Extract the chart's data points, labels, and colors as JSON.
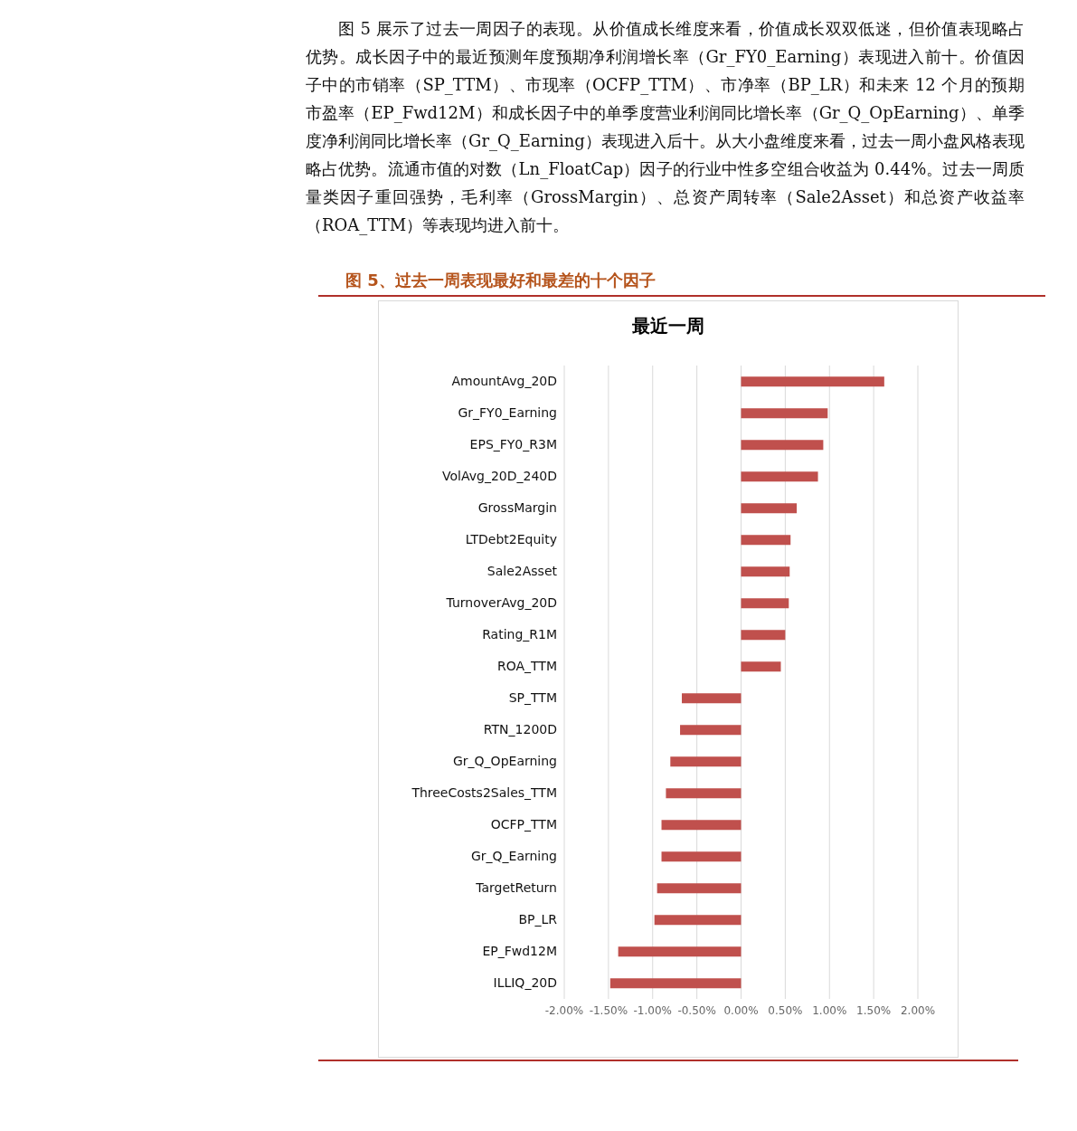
{
  "chart_data": {
    "type": "bar",
    "orientation": "horizontal",
    "title": "图 5、过去一周表现最好和最差的十个因子",
    "subtitle": "最近一周",
    "annotations": [
      "图 5 展示了过去一周因子的表现。从价值成长维度来看，价值成长双双低迷，但价值表现略占优势。成长因子中的最近预测年度预期净利润增长率（Gr_FY0_Earning）表现进入前十。价值因子中的市销率（SP_TTM）、市现率（OCFP_TTM）、市净率（BP_LR）和未来 12 个月的预期市盈率（EP_Fwd12M）和成长因子中的单季度营业利润同比增长率（Gr_Q_OpEarning）、单季度净利润同比增长率（Gr_Q_Earning）表现进入后十。从大小盘维度来看，过去一周小盘风格表现略占优势。流通市值的对数（Ln_FloatCap）因子的行业中性多空组合收益为 0.44%。过去一周质量类因子重回强势，毛利率（GrossMargin）、总资产周转率（Sale2Asset）和总资产收益率（ROA_TTM）等表现均进入前十。"
    ],
    "categories": [
      "AmountAvg_20D",
      "Gr_FY0_Earning",
      "EPS_FY0_R3M",
      "VolAvg_20D_240D",
      "GrossMargin",
      "LTDebt2Equity",
      "Sale2Asset",
      "TurnoverAvg_20D",
      "Rating_R1M",
      "ROA_TTM",
      "SP_TTM",
      "RTN_1200D",
      "Gr_Q_OpEarning",
      "ThreeCosts2Sales_TTM",
      "OCFP_TTM",
      "Gr_Q_Earning",
      "TargetReturn",
      "BP_LR",
      "EP_Fwd12M",
      "ILLIQ_20D"
    ],
    "values": [
      1.62,
      0.98,
      0.93,
      0.87,
      0.63,
      0.56,
      0.55,
      0.54,
      0.5,
      0.45,
      -0.67,
      -0.69,
      -0.8,
      -0.85,
      -0.9,
      -0.9,
      -0.95,
      -0.98,
      -1.39,
      -1.48
    ],
    "color": "#c0504d",
    "xlim": [
      -2,
      2
    ],
    "xticks": [
      {
        "value": -2,
        "label": "-2.00%"
      },
      {
        "value": -1.5,
        "label": "-1.50%"
      },
      {
        "value": -1,
        "label": "-1.00%"
      },
      {
        "value": -0.5,
        "label": "-0.50%"
      },
      {
        "value": 0,
        "label": "0.00%"
      },
      {
        "value": 0.5,
        "label": "0.50%"
      },
      {
        "value": 1,
        "label": "1.00%"
      },
      {
        "value": 1.5,
        "label": "1.50%"
      },
      {
        "value": 2,
        "label": "2.00%"
      }
    ],
    "grid": "x"
  }
}
